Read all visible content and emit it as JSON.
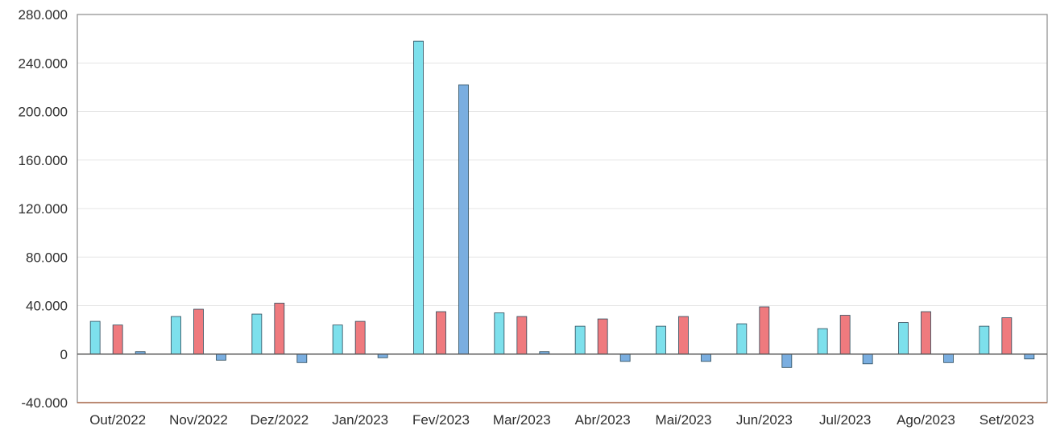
{
  "chart_data": {
    "type": "bar",
    "categories": [
      "Out/2022",
      "Nov/2022",
      "Dez/2022",
      "Jan/2023",
      "Fev/2023",
      "Mar/2023",
      "Abr/2023",
      "Mai/2023",
      "Jun/2023",
      "Jul/2023",
      "Ago/2023",
      "Set/2023"
    ],
    "series": [
      {
        "color": "#7de0ec",
        "values": [
          27000,
          31000,
          33000,
          24000,
          258000,
          34000,
          23000,
          23000,
          25000,
          21000,
          26000,
          23000
        ]
      },
      {
        "color": "#ef7a7e",
        "values": [
          24000,
          37000,
          42000,
          27000,
          35000,
          31000,
          29000,
          31000,
          39000,
          32000,
          35000,
          30000
        ]
      },
      {
        "color": "#7aaee0",
        "values": [
          2000,
          -5000,
          -7000,
          -3000,
          222000,
          2000,
          -6000,
          -6000,
          -11000,
          -8000,
          -7000,
          -4000
        ]
      }
    ],
    "ylim": [
      -40000,
      280000
    ],
    "yticks": [
      -40000,
      0,
      40000,
      80000,
      120000,
      160000,
      200000,
      240000,
      280000
    ],
    "ytick_labels": [
      "-40.000",
      "0",
      "40.000",
      "80.000",
      "120.000",
      "160.000",
      "200.000",
      "240.000",
      "280.000"
    ],
    "grid": true,
    "legend": "none"
  }
}
